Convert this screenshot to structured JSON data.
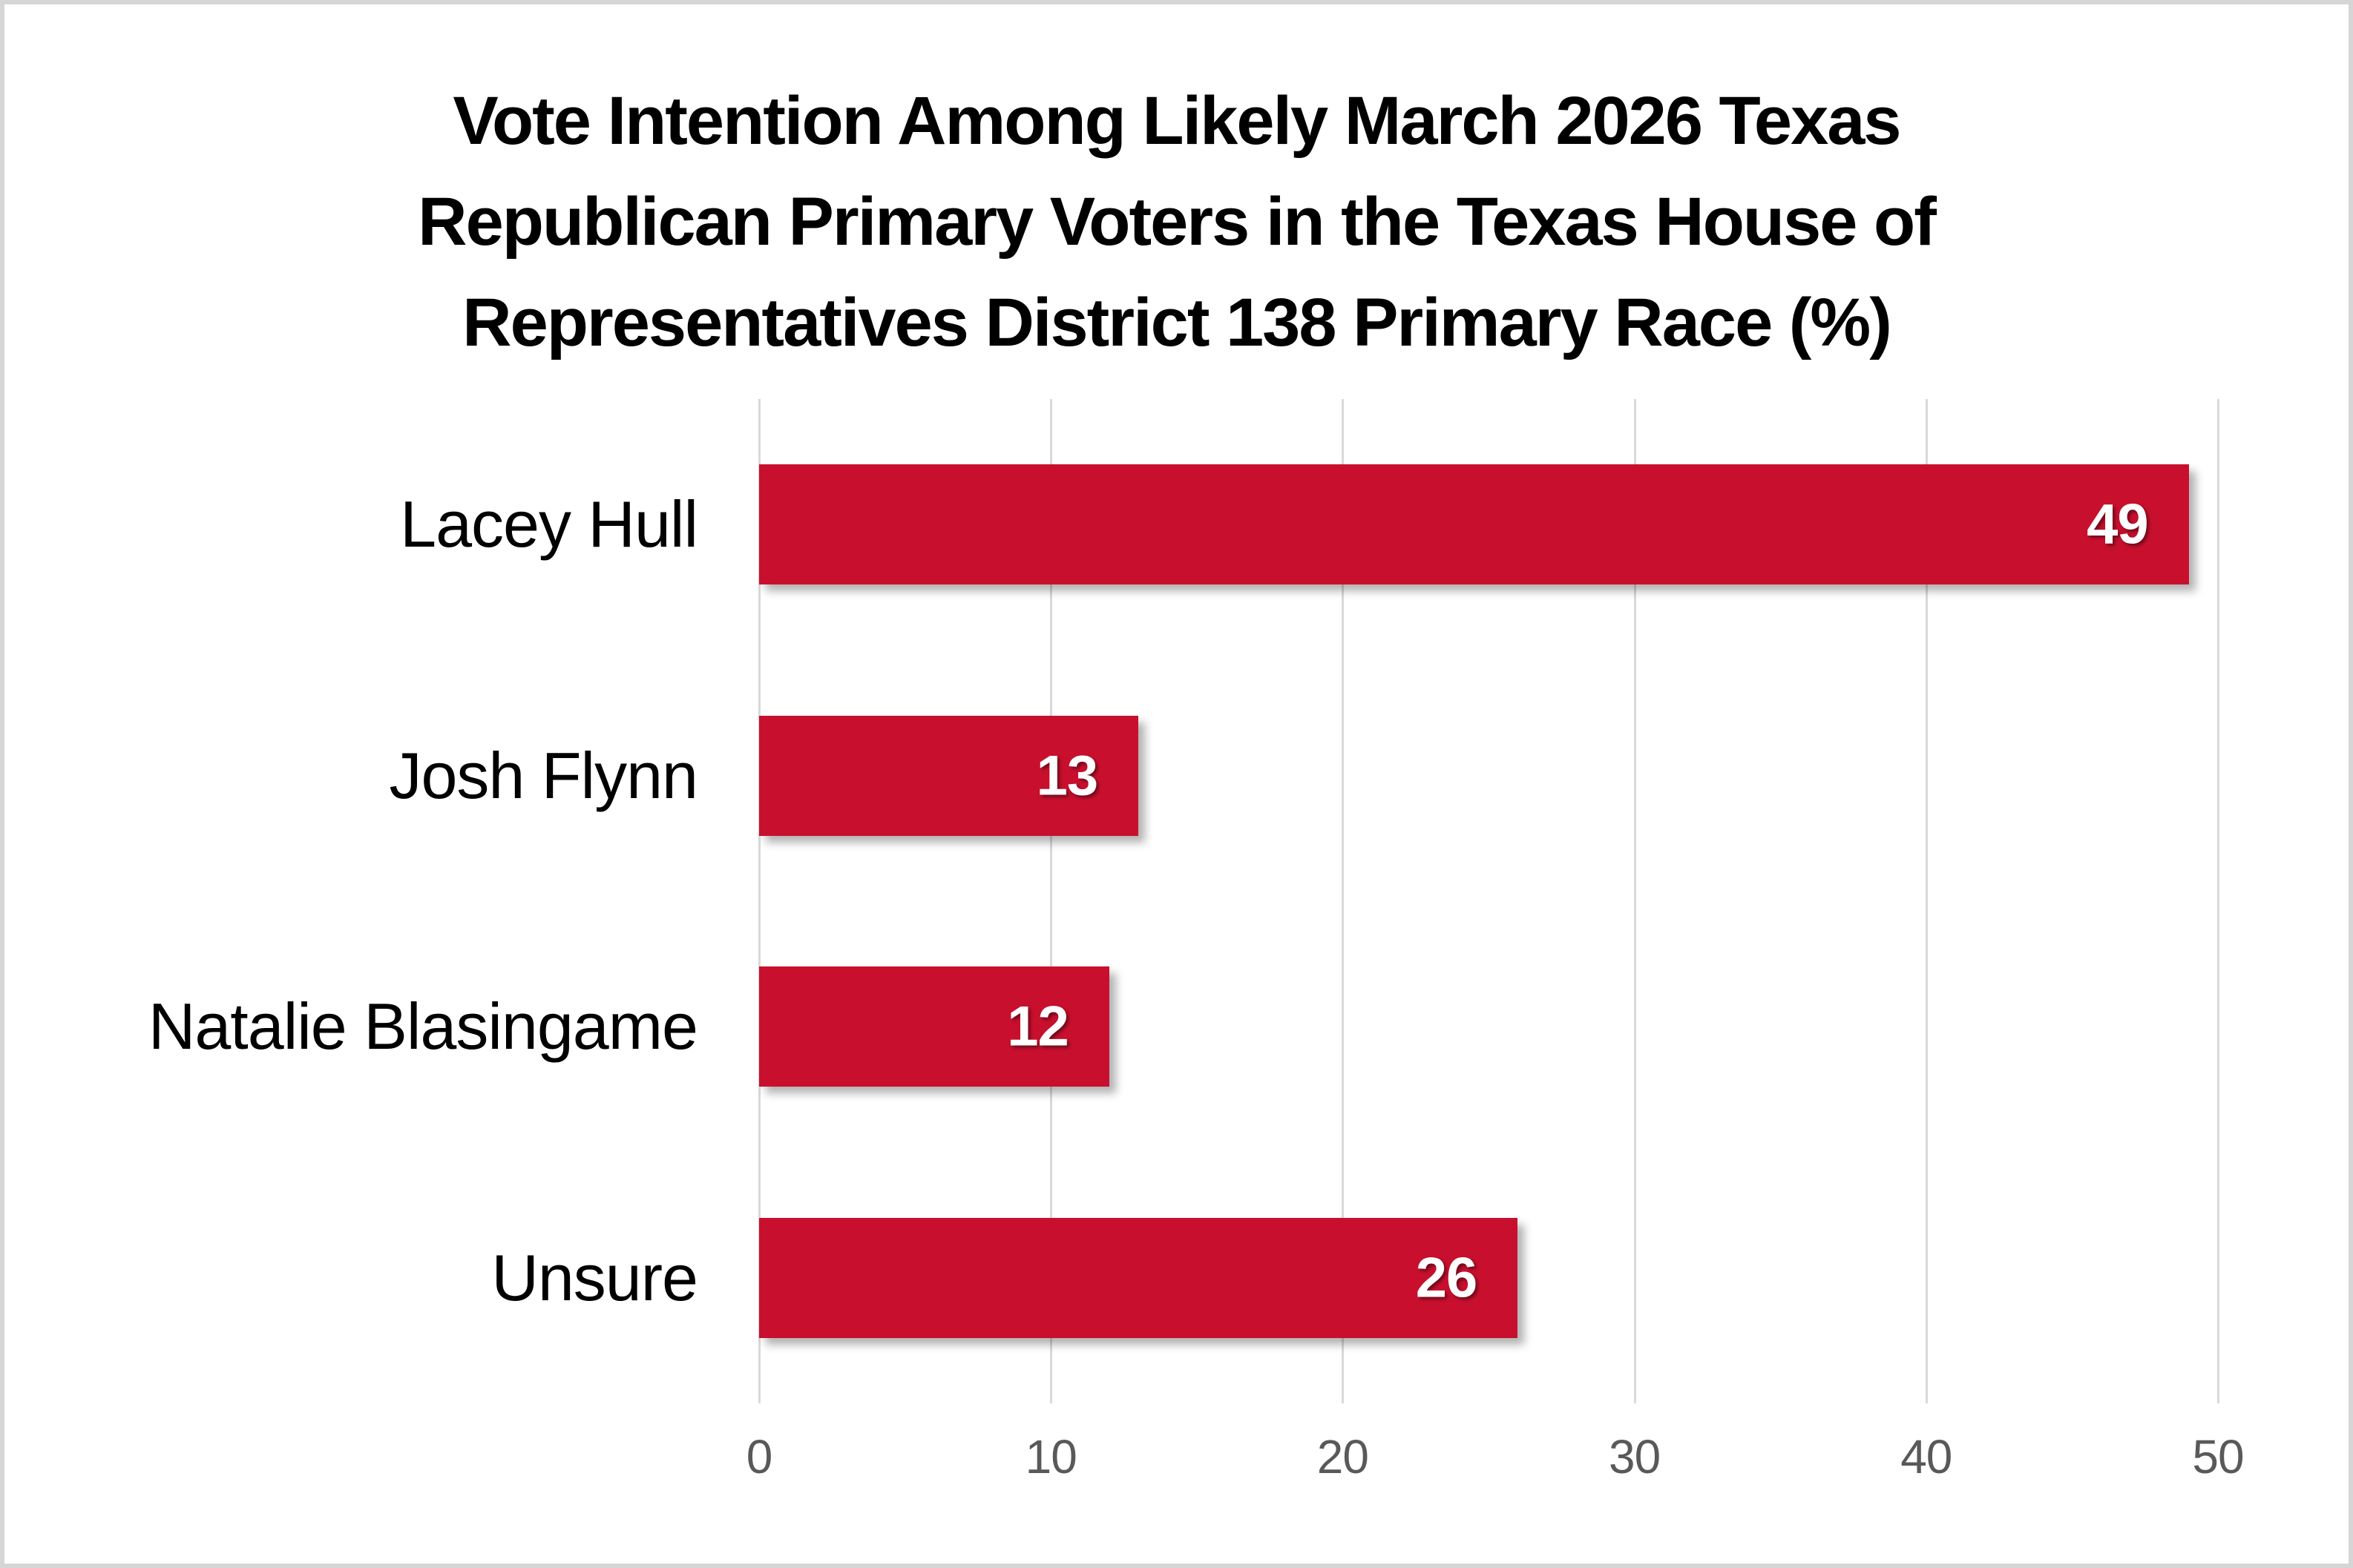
{
  "chart_data": {
    "type": "bar",
    "orientation": "horizontal",
    "title": "Vote Intention Among Likely March 2026 Texas Republican Primary Voters in the Texas House of Representatives District 138 Primary Race (%)",
    "title_lines": [
      "Vote Intention Among Likely March 2026 Texas",
      "Republican Primary Voters in the Texas House of",
      "Representatives District 138 Primary Race (%)"
    ],
    "categories": [
      "Lacey Hull",
      "Josh Flynn",
      "Natalie Blasingame",
      "Unsure"
    ],
    "values": [
      49,
      13,
      12,
      26
    ],
    "value_labels": [
      "49",
      "13",
      "12",
      "26"
    ],
    "xlim": [
      0,
      50
    ],
    "x_ticks": [
      0,
      10,
      20,
      30,
      40,
      50
    ],
    "grid": true,
    "legend": "none",
    "colors": {
      "bar": "#c8102e",
      "value_label": "#ffffff",
      "tick_label": "#595959",
      "gridline": "#d9d9d9",
      "title": "#000000",
      "frame_border": "#d6d6d6"
    }
  }
}
